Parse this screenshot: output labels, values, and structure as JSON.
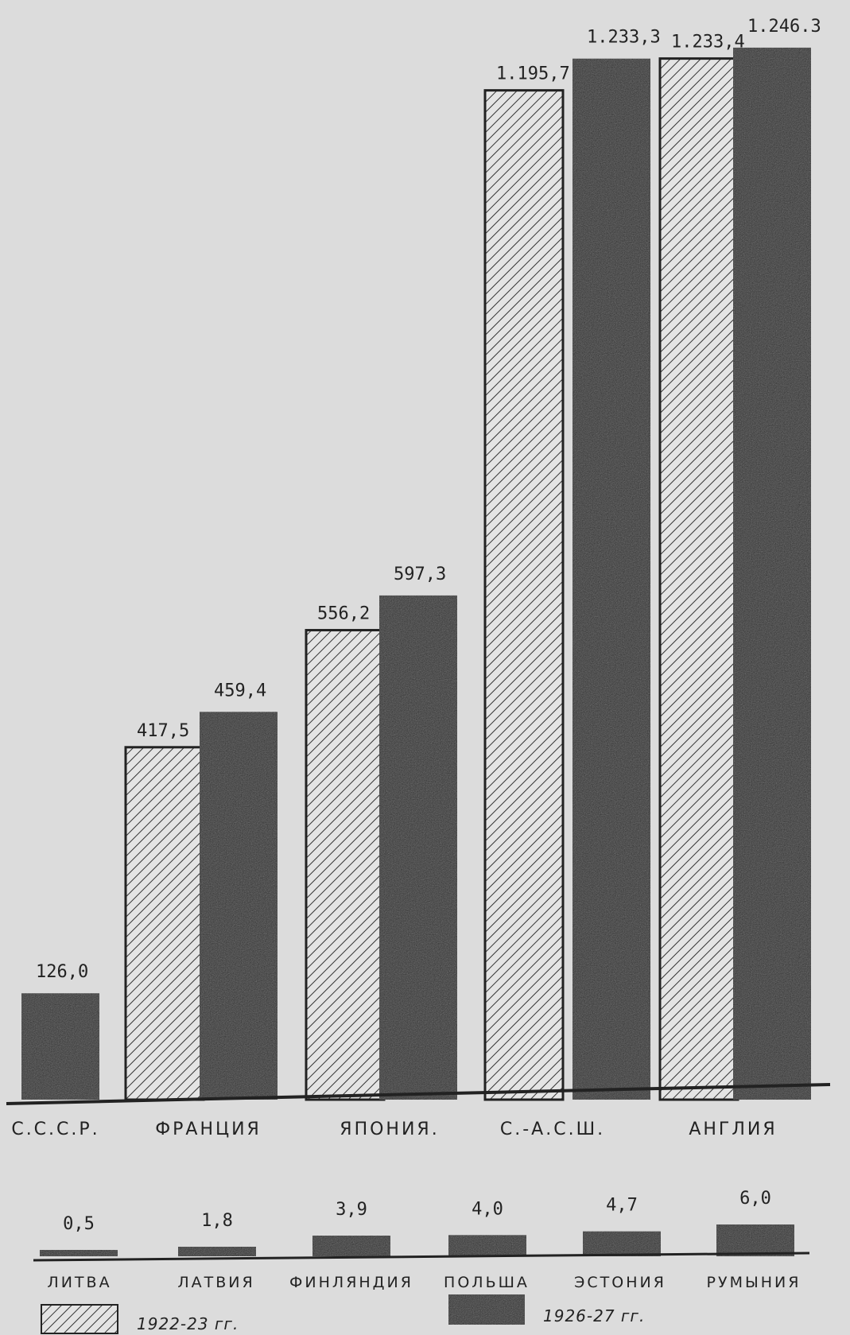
{
  "colors": {
    "paper": "#dcdcdc",
    "dark_bar": "#2e2e2e",
    "hatch_fill": "#e4e4e4",
    "ink": "#222222"
  },
  "chart_data": [
    {
      "type": "bar",
      "categories": [
        "С.С.С.Р.",
        "ФРАНЦИЯ",
        "ЯПОНИЯ.",
        "С.-А.С.Ш.",
        "АНГЛИЯ"
      ],
      "series": [
        {
          "name": "1922-23 гг.",
          "style": "hatched",
          "values": [
            null,
            417.5,
            556.2,
            1195.7,
            1233.4
          ],
          "labels": [
            "",
            "417,5",
            "556,2",
            "1.195,7",
            "1.233,4"
          ]
        },
        {
          "name": "1926-27 гг.",
          "style": "dark",
          "values": [
            126.0,
            459.4,
            597.3,
            1233.3,
            1246.3
          ],
          "labels": [
            "126,0",
            "459,4",
            "597,3",
            "1.233,3",
            "1.246.3"
          ]
        }
      ],
      "ylim": [
        0,
        1300
      ],
      "grid": false
    },
    {
      "type": "bar",
      "categories": [
        "ЛИТВА",
        "ЛАТВИЯ",
        "ФИНЛЯНДИЯ",
        "ПОЛЬША",
        "ЭСТОНИЯ",
        "РУМЫНИЯ"
      ],
      "series": [
        {
          "name": "1926-27 гг.",
          "style": "dark",
          "values": [
            0.5,
            1.8,
            3.9,
            4.0,
            4.7,
            6.0
          ],
          "labels": [
            "0,5",
            "1,8",
            "3,9",
            "4,0",
            "4,7",
            "6,0"
          ]
        }
      ],
      "ylim": [
        0,
        6.5
      ],
      "grid": false
    }
  ],
  "legend": {
    "items": [
      {
        "label": "1922-23 гг.",
        "style": "hatched"
      },
      {
        "label": "1926-27 гг.",
        "style": "dark"
      }
    ]
  }
}
